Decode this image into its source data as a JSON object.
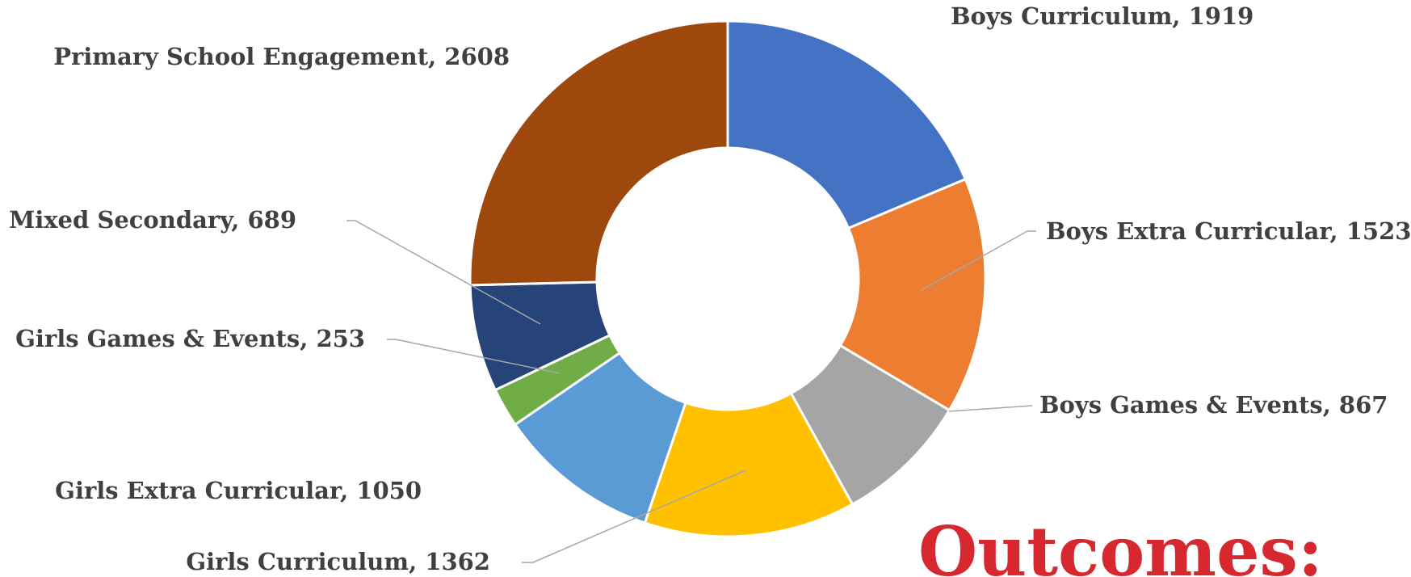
{
  "chart_data": {
    "type": "donut",
    "title": "Outcomes:",
    "values": [
      1919,
      1523,
      867,
      1362,
      1050,
      253,
      689,
      2608
    ],
    "value_labels": [
      "Boys Curriculum, 1919",
      "Boys Extra Curricular, 1523",
      "Boys Games & Events, 867",
      "Girls Curriculum, 1362",
      "Girls Extra Curricular, 1050",
      "Girls Games & Events, 253",
      "Mixed Secondary, 689",
      "Primary School Engagement, 2608"
    ],
    "colors": [
      "#4472c4",
      "#ed7d31",
      "#a5a5a5",
      "#ffc000",
      "#5b9bd5",
      "#70ad47",
      "#264478",
      "#9e480e"
    ]
  }
}
